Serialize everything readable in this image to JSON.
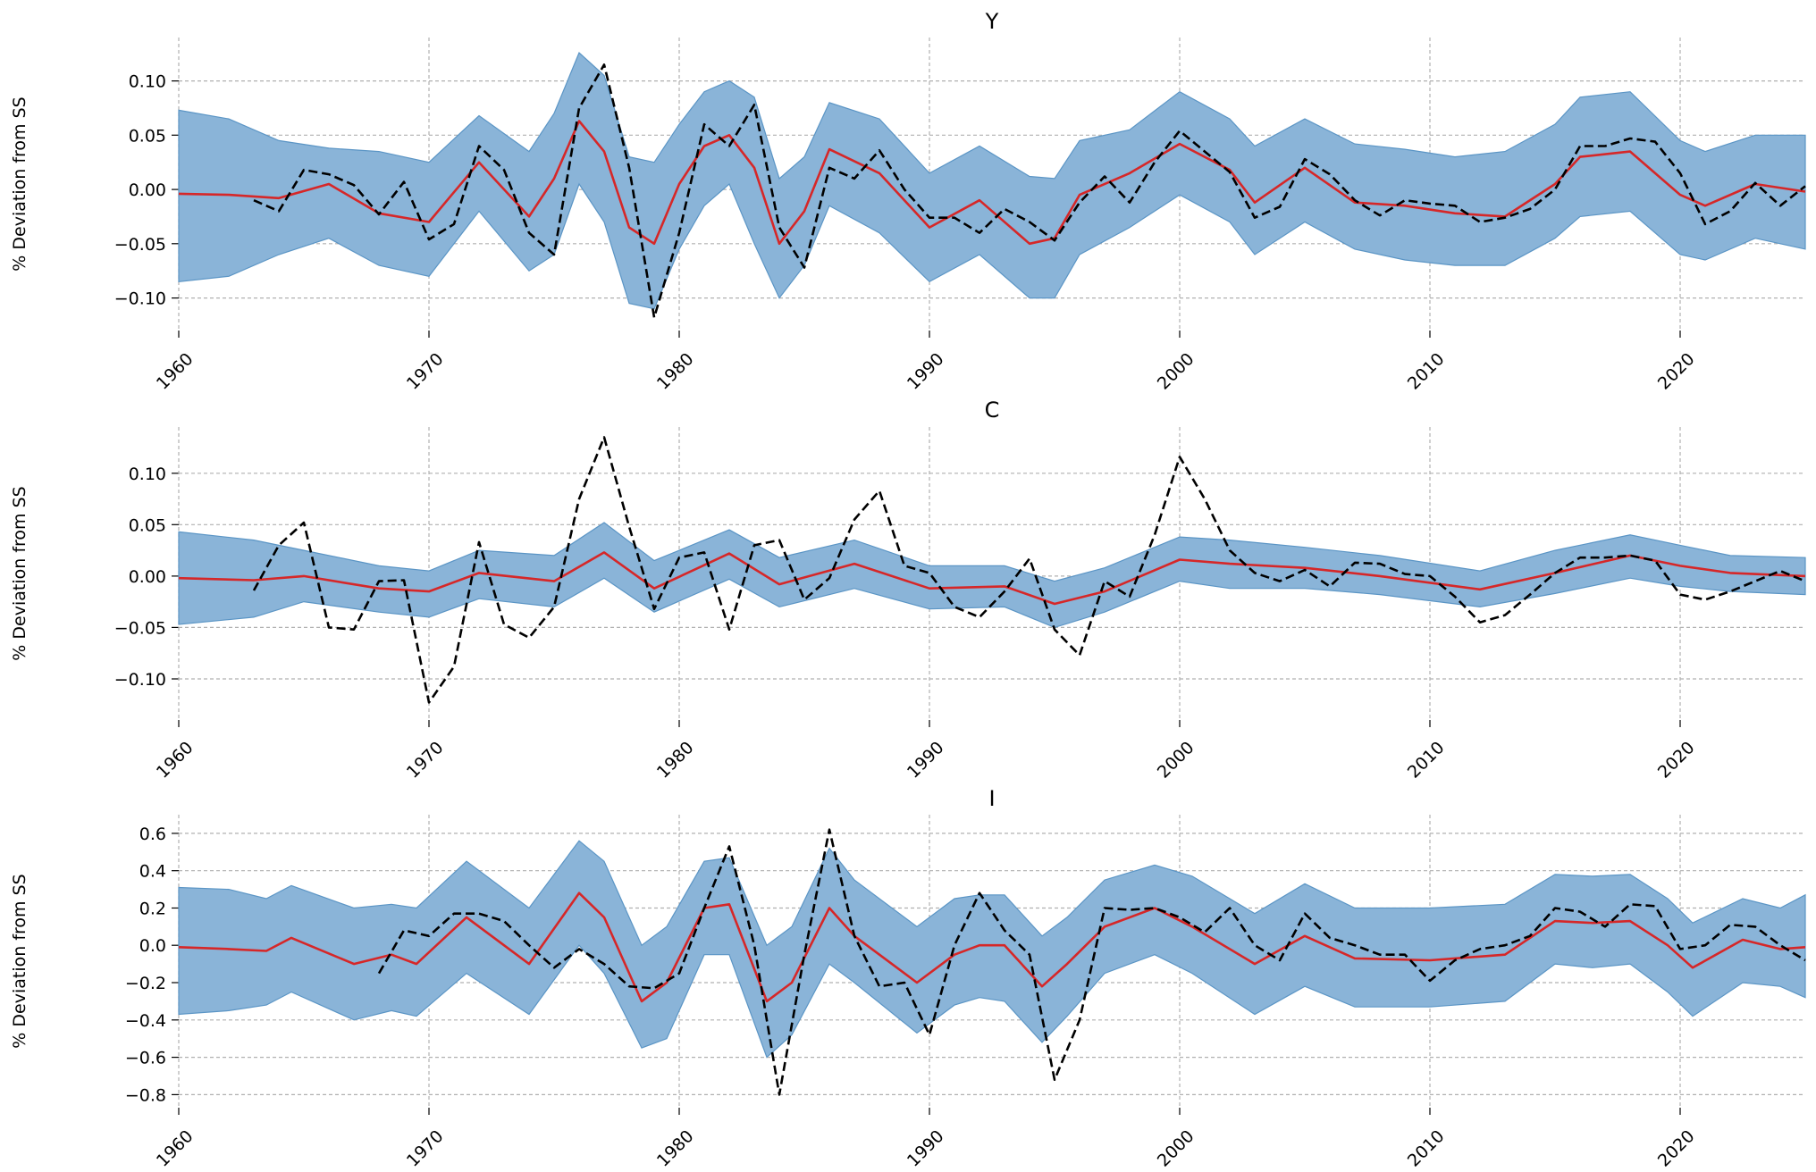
{
  "colors": {
    "band": "#8ab4d8",
    "mean": "#d62728",
    "observed": "#000000",
    "grid": "#b0b0b0"
  },
  "chart_data": [
    {
      "type": "line",
      "title": "Y",
      "xlabel": "",
      "ylabel": "% Deviation from SS",
      "xlim": [
        1960,
        2025
      ],
      "ylim": [
        -0.13,
        0.14
      ],
      "xticks": [
        1960,
        1970,
        1980,
        1990,
        2000,
        2010,
        2020
      ],
      "yticks": [
        -0.1,
        -0.05,
        0.0,
        0.05,
        0.1
      ],
      "ytick_labels": [
        "−0.10",
        "−0.05",
        "0.00",
        "0.05",
        "0.10"
      ],
      "grid": true,
      "legend": "none",
      "smoothed_mean": {
        "x": [
          1960,
          1962,
          1964,
          1966,
          1968,
          1970,
          1972,
          1974,
          1975,
          1976,
          1977,
          1978,
          1979,
          1980,
          1981,
          1982,
          1983,
          1984,
          1985,
          1986,
          1988,
          1990,
          1992,
          1994,
          1995,
          1996,
          1998,
          2000,
          2002,
          2003,
          2005,
          2007,
          2009,
          2011,
          2013,
          2015,
          2016,
          2018,
          2020,
          2021,
          2023,
          2025
        ],
        "y": [
          -0.004,
          -0.005,
          -0.008,
          0.005,
          -0.022,
          -0.03,
          0.025,
          -0.025,
          0.01,
          0.063,
          0.035,
          -0.035,
          -0.05,
          0.005,
          0.04,
          0.05,
          0.02,
          -0.05,
          -0.02,
          0.037,
          0.015,
          -0.035,
          -0.01,
          -0.05,
          -0.045,
          -0.005,
          0.015,
          0.042,
          0.018,
          -0.012,
          0.02,
          -0.012,
          -0.015,
          -0.022,
          -0.025,
          0.005,
          0.03,
          0.035,
          -0.005,
          -0.015,
          0.005,
          -0.002
        ],
        "band_upper": [
          0.073,
          0.065,
          0.045,
          0.038,
          0.035,
          0.025,
          0.068,
          0.035,
          0.07,
          0.126,
          0.105,
          0.03,
          0.025,
          0.06,
          0.09,
          0.1,
          0.085,
          0.01,
          0.03,
          0.08,
          0.065,
          0.015,
          0.04,
          0.012,
          0.01,
          0.045,
          0.055,
          0.09,
          0.065,
          0.04,
          0.065,
          0.042,
          0.037,
          0.03,
          0.035,
          0.06,
          0.085,
          0.09,
          0.045,
          0.035,
          0.05,
          0.05
        ],
        "band_lower": [
          -0.085,
          -0.08,
          -0.06,
          -0.045,
          -0.07,
          -0.08,
          -0.02,
          -0.075,
          -0.06,
          0.005,
          -0.03,
          -0.105,
          -0.11,
          -0.055,
          -0.015,
          0.005,
          -0.05,
          -0.1,
          -0.07,
          -0.015,
          -0.04,
          -0.085,
          -0.06,
          -0.1,
          -0.1,
          -0.06,
          -0.035,
          -0.005,
          -0.03,
          -0.06,
          -0.03,
          -0.055,
          -0.065,
          -0.07,
          -0.07,
          -0.045,
          -0.025,
          -0.02,
          -0.06,
          -0.065,
          -0.045,
          -0.055
        ]
      },
      "observed": {
        "x": [
          1963,
          1964,
          1965,
          1966,
          1967,
          1968,
          1969,
          1970,
          1971,
          1972,
          1973,
          1974,
          1975,
          1976,
          1977,
          1978,
          1979,
          1980,
          1981,
          1982,
          1983,
          1984,
          1985,
          1986,
          1987,
          1988,
          1989,
          1990,
          1991,
          1992,
          1993,
          1994,
          1995,
          1996,
          1997,
          1998,
          1999,
          2000,
          2001,
          2002,
          2003,
          2004,
          2005,
          2006,
          2007,
          2008,
          2009,
          2010,
          2011,
          2012,
          2013,
          2014,
          2015,
          2016,
          2017,
          2018,
          2019,
          2020,
          2021,
          2022,
          2023,
          2024,
          2025
        ],
        "y": [
          -0.01,
          -0.02,
          0.018,
          0.014,
          0.004,
          -0.023,
          0.007,
          -0.046,
          -0.032,
          0.04,
          0.018,
          -0.04,
          -0.06,
          0.075,
          0.115,
          0.02,
          -0.118,
          -0.04,
          0.06,
          0.04,
          0.078,
          -0.035,
          -0.072,
          0.02,
          0.01,
          0.036,
          0.0,
          -0.026,
          -0.026,
          -0.04,
          -0.018,
          -0.03,
          -0.047,
          -0.012,
          0.012,
          -0.012,
          0.025,
          0.054,
          0.035,
          0.016,
          -0.026,
          -0.016,
          0.028,
          0.014,
          -0.01,
          -0.024,
          -0.01,
          -0.013,
          -0.015,
          -0.03,
          -0.026,
          -0.018,
          0.0,
          0.04,
          0.04,
          0.047,
          0.044,
          0.015,
          -0.032,
          -0.02,
          0.006,
          -0.015,
          0.003
        ]
      }
    },
    {
      "type": "line",
      "title": "C",
      "xlabel": "",
      "ylabel": "% Deviation from SS",
      "xlim": [
        1960,
        2025
      ],
      "ylim": [
        -0.14,
        0.145
      ],
      "xticks": [
        1960,
        1970,
        1980,
        1990,
        2000,
        2010,
        2020
      ],
      "yticks": [
        -0.1,
        -0.05,
        0.0,
        0.05,
        0.1
      ],
      "ytick_labels": [
        "−0.10",
        "−0.05",
        "0.00",
        "0.05",
        "0.10"
      ],
      "grid": true,
      "legend": "none",
      "smoothed_mean": {
        "x": [
          1960,
          1963,
          1965,
          1968,
          1970,
          1972,
          1975,
          1977,
          1979,
          1982,
          1984,
          1987,
          1990,
          1993,
          1995,
          1997,
          2000,
          2002,
          2005,
          2008,
          2012,
          2015,
          2018,
          2020,
          2022,
          2025
        ],
        "y": [
          -0.002,
          -0.004,
          0.0,
          -0.012,
          -0.015,
          0.003,
          -0.005,
          0.023,
          -0.012,
          0.022,
          -0.008,
          0.012,
          -0.012,
          -0.01,
          -0.027,
          -0.015,
          0.016,
          0.012,
          0.008,
          0.0,
          -0.013,
          0.003,
          0.02,
          0.01,
          0.003,
          0.0
        ],
        "band_upper": [
          0.043,
          0.035,
          0.025,
          0.01,
          0.005,
          0.025,
          0.02,
          0.052,
          0.015,
          0.045,
          0.018,
          0.035,
          0.01,
          0.01,
          -0.005,
          0.008,
          0.038,
          0.035,
          0.028,
          0.02,
          0.005,
          0.025,
          0.04,
          0.03,
          0.02,
          0.018
        ],
        "band_lower": [
          -0.047,
          -0.04,
          -0.025,
          -0.035,
          -0.04,
          -0.022,
          -0.03,
          -0.002,
          -0.035,
          -0.003,
          -0.03,
          -0.012,
          -0.032,
          -0.03,
          -0.05,
          -0.035,
          -0.005,
          -0.012,
          -0.012,
          -0.018,
          -0.03,
          -0.017,
          -0.002,
          -0.01,
          -0.015,
          -0.018
        ]
      },
      "observed": {
        "x": [
          1963,
          1964,
          1965,
          1966,
          1967,
          1968,
          1969,
          1970,
          1971,
          1972,
          1973,
          1974,
          1975,
          1976,
          1977,
          1978,
          1979,
          1980,
          1981,
          1982,
          1983,
          1984,
          1985,
          1986,
          1987,
          1988,
          1989,
          1990,
          1991,
          1992,
          1993,
          1994,
          1995,
          1996,
          1997,
          1998,
          1999,
          2000,
          2001,
          2002,
          2003,
          2004,
          2005,
          2006,
          2007,
          2008,
          2009,
          2010,
          2011,
          2012,
          2013,
          2014,
          2015,
          2016,
          2017,
          2018,
          2019,
          2020,
          2021,
          2022,
          2023,
          2024,
          2025
        ],
        "y": [
          -0.014,
          0.03,
          0.052,
          -0.05,
          -0.052,
          -0.005,
          -0.004,
          -0.123,
          -0.088,
          0.033,
          -0.047,
          -0.06,
          -0.03,
          0.075,
          0.135,
          0.048,
          -0.032,
          0.018,
          0.023,
          -0.052,
          0.03,
          0.035,
          -0.023,
          -0.002,
          0.055,
          0.083,
          0.01,
          0.003,
          -0.03,
          -0.04,
          -0.015,
          0.017,
          -0.052,
          -0.077,
          -0.005,
          -0.02,
          0.04,
          0.116,
          0.075,
          0.025,
          0.003,
          -0.005,
          0.006,
          -0.01,
          0.013,
          0.012,
          0.002,
          0.0,
          -0.02,
          -0.045,
          -0.038,
          -0.018,
          0.003,
          0.018,
          0.018,
          0.02,
          0.015,
          -0.018,
          -0.023,
          -0.015,
          -0.005,
          0.005,
          -0.005
        ]
      }
    },
    {
      "type": "line",
      "title": "I",
      "xlabel": "",
      "ylabel": "% Deviation from SS",
      "xlim": [
        1960,
        2025
      ],
      "ylim": [
        -0.87,
        0.7
      ],
      "xticks": [
        1960,
        1970,
        1980,
        1990,
        2000,
        2010,
        2020
      ],
      "yticks": [
        -0.8,
        -0.6,
        -0.4,
        -0.2,
        0.0,
        0.2,
        0.4,
        0.6
      ],
      "ytick_labels": [
        "−0.8",
        "−0.6",
        "−0.4",
        "−0.2",
        "0.0",
        "0.2",
        "0.4",
        "0.6"
      ],
      "grid": true,
      "legend": "none",
      "smoothed_mean": {
        "x": [
          1960,
          1962,
          1963.5,
          1964.5,
          1967,
          1968.5,
          1969.5,
          1971.5,
          1974,
          1976,
          1977,
          1978.5,
          1979.5,
          1981,
          1982,
          1983.5,
          1984.5,
          1986,
          1987,
          1989.5,
          1991,
          1992,
          1993,
          1994.5,
          1995.5,
          1997,
          1999,
          2000.5,
          2003,
          2005,
          2007,
          2010,
          2013,
          2015,
          2016.5,
          2018,
          2019.5,
          2020.5,
          2022.5,
          2024,
          2025
        ],
        "y": [
          -0.01,
          -0.02,
          -0.03,
          0.04,
          -0.1,
          -0.05,
          -0.1,
          0.15,
          -0.1,
          0.28,
          0.15,
          -0.3,
          -0.2,
          0.2,
          0.22,
          -0.3,
          -0.2,
          0.2,
          0.05,
          -0.2,
          -0.05,
          0.0,
          0.0,
          -0.22,
          -0.1,
          0.1,
          0.2,
          0.1,
          -0.1,
          0.05,
          -0.07,
          -0.08,
          -0.05,
          0.13,
          0.12,
          0.13,
          0.0,
          -0.12,
          0.03,
          -0.02,
          -0.01
        ],
        "band_upper": [
          0.31,
          0.3,
          0.25,
          0.32,
          0.2,
          0.22,
          0.2,
          0.45,
          0.2,
          0.56,
          0.45,
          0.0,
          0.1,
          0.45,
          0.47,
          0.0,
          0.1,
          0.52,
          0.35,
          0.1,
          0.25,
          0.27,
          0.27,
          0.05,
          0.15,
          0.35,
          0.43,
          0.37,
          0.17,
          0.33,
          0.2,
          0.2,
          0.22,
          0.38,
          0.37,
          0.38,
          0.25,
          0.12,
          0.25,
          0.2,
          0.27
        ],
        "band_lower": [
          -0.37,
          -0.35,
          -0.32,
          -0.25,
          -0.4,
          -0.35,
          -0.38,
          -0.15,
          -0.37,
          0.0,
          -0.15,
          -0.55,
          -0.5,
          -0.05,
          -0.05,
          -0.6,
          -0.48,
          -0.1,
          -0.2,
          -0.47,
          -0.32,
          -0.28,
          -0.3,
          -0.52,
          -0.38,
          -0.15,
          -0.05,
          -0.15,
          -0.37,
          -0.22,
          -0.33,
          -0.33,
          -0.3,
          -0.1,
          -0.12,
          -0.1,
          -0.25,
          -0.38,
          -0.2,
          -0.22,
          -0.28
        ]
      },
      "observed": {
        "x": [
          1968,
          1969,
          1970,
          1971,
          1972,
          1973,
          1974,
          1975,
          1976,
          1977,
          1978,
          1979,
          1980,
          1981,
          1982,
          1983,
          1984,
          1985,
          1986,
          1987,
          1988,
          1989,
          1990,
          1991,
          1992,
          1993,
          1994,
          1995,
          1996,
          1997,
          1998,
          1999,
          2000,
          2001,
          2002,
          2003,
          2004,
          2005,
          2006,
          2007,
          2008,
          2009,
          2010,
          2011,
          2012,
          2013,
          2014,
          2015,
          2016,
          2017,
          2018,
          2019,
          2020,
          2021,
          2022,
          2023,
          2024,
          2025
        ],
        "y": [
          -0.15,
          0.08,
          0.05,
          0.17,
          0.17,
          0.13,
          0.0,
          -0.12,
          -0.02,
          -0.1,
          -0.22,
          -0.23,
          -0.15,
          0.2,
          0.53,
          0.0,
          -0.8,
          -0.05,
          0.62,
          0.05,
          -0.22,
          -0.2,
          -0.48,
          0.0,
          0.28,
          0.08,
          -0.05,
          -0.72,
          -0.4,
          0.2,
          0.19,
          0.2,
          0.15,
          0.07,
          0.2,
          0.0,
          -0.08,
          0.17,
          0.04,
          0.0,
          -0.05,
          -0.05,
          -0.19,
          -0.08,
          -0.02,
          0.0,
          0.05,
          0.2,
          0.18,
          0.1,
          0.22,
          0.21,
          -0.02,
          0.0,
          0.11,
          0.1,
          0.0,
          -0.08
        ]
      }
    }
  ]
}
